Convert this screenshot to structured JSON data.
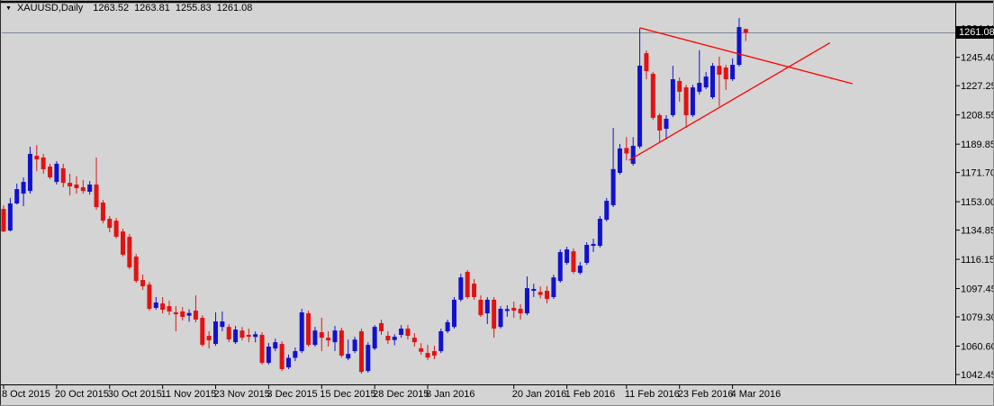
{
  "title_bar": {
    "arrow_icon": "▼",
    "symbol": "XAUUSD,Daily",
    "open": "1263.52",
    "high": "1263.81",
    "low": "1255.83",
    "close": "1261.08"
  },
  "colors": {
    "background": "#d4d4d4",
    "up_candle": "#1111cf",
    "down_candle": "#e21212",
    "trendline": "#ff0000",
    "bid_line": "#7d8795",
    "axis": "#000000",
    "text": "#000000",
    "current_price_bg": "#000000",
    "current_price_fg": "#ffffff"
  },
  "chart_data": {
    "type": "candlestick",
    "symbol": "XAUUSD",
    "timeframe": "Daily",
    "title_ohlc": [
      1263.52,
      1263.81,
      1255.83,
      1261.08
    ],
    "current_price": "1261.08",
    "bid_line_price": 1261.08,
    "grid": false,
    "ylim": [
      1036,
      1272
    ],
    "price_axis_labels": [
      {
        "text": "1264.10",
        "value": 1264.1
      },
      {
        "text": "1245.40",
        "value": 1245.4
      },
      {
        "text": "1227.25",
        "value": 1227.25
      },
      {
        "text": "1208.55",
        "value": 1208.55
      },
      {
        "text": "1189.85",
        "value": 1189.85
      },
      {
        "text": "1171.70",
        "value": 1171.7
      },
      {
        "text": "1153.00",
        "value": 1153.0
      },
      {
        "text": "1134.85",
        "value": 1134.85
      },
      {
        "text": "1116.15",
        "value": 1116.15
      },
      {
        "text": "1097.45",
        "value": 1097.45
      },
      {
        "text": "1079.30",
        "value": 1079.3
      },
      {
        "text": "1060.60",
        "value": 1060.6
      },
      {
        "text": "1042.45",
        "value": 1042.45
      }
    ],
    "time_axis_labels": [
      {
        "text": "8 Oct 2015",
        "index": 0
      },
      {
        "text": "20 Oct 2015",
        "index": 8
      },
      {
        "text": "30 Oct 2015",
        "index": 16
      },
      {
        "text": "11 Nov 2015",
        "index": 24
      },
      {
        "text": "23 Nov 2015",
        "index": 32
      },
      {
        "text": "3 Dec 2015",
        "index": 40
      },
      {
        "text": "15 Dec 2015",
        "index": 48
      },
      {
        "text": "28 Dec 2015",
        "index": 56
      },
      {
        "text": "8 Jan 2016",
        "index": 64
      },
      {
        "text": "20 Jan 2016",
        "index": 77
      },
      {
        "text": "1 Feb 2016",
        "index": 85
      },
      {
        "text": "11 Feb 2016",
        "index": 94
      },
      {
        "text": "23 Feb 2016",
        "index": 102
      },
      {
        "text": "4 Mar 2016",
        "index": 110
      }
    ],
    "trendlines": [
      {
        "name": "descending",
        "x1_index": 96.0,
        "price1": 1264.3,
        "x2_index": 128.1,
        "price2": 1228.5
      },
      {
        "name": "ascending",
        "x1_index": 94.4,
        "price1": 1179.6,
        "x2_index": 124.7,
        "price2": 1254.7
      }
    ],
    "candles_format": [
      "open",
      "high",
      "low",
      "close"
    ],
    "candles": [
      [
        1148.4,
        1150.7,
        1133.5,
        1134.0
      ],
      [
        1134.6,
        1155.4,
        1134.0,
        1151.9
      ],
      [
        1151.9,
        1164.6,
        1151.3,
        1161.1
      ],
      [
        1158.2,
        1168.6,
        1150.2,
        1165.7
      ],
      [
        1159.9,
        1188.2,
        1158.2,
        1183.6
      ],
      [
        1182.4,
        1189.3,
        1172.6,
        1180.1
      ],
      [
        1181.3,
        1183.6,
        1170.9,
        1173.8
      ],
      [
        1175.5,
        1177.3,
        1167.4,
        1168.6
      ],
      [
        1165.7,
        1179.0,
        1164.0,
        1177.3
      ],
      [
        1174.4,
        1177.3,
        1162.3,
        1165.1
      ],
      [
        1165.1,
        1170.9,
        1157.1,
        1162.8
      ],
      [
        1164.0,
        1169.2,
        1158.2,
        1161.7
      ],
      [
        1162.3,
        1166.9,
        1158.2,
        1159.9
      ],
      [
        1159.4,
        1166.3,
        1157.6,
        1164.0
      ],
      [
        1164.0,
        1181.3,
        1147.9,
        1149.6
      ],
      [
        1152.5,
        1154.2,
        1139.2,
        1140.9
      ],
      [
        1142.1,
        1143.8,
        1133.5,
        1136.3
      ],
      [
        1140.9,
        1142.7,
        1129.4,
        1130.6
      ],
      [
        1134.0,
        1135.8,
        1117.9,
        1119.1
      ],
      [
        1130.6,
        1132.3,
        1109.8,
        1111.0
      ],
      [
        1117.9,
        1119.6,
        1101.2,
        1102.3
      ],
      [
        1102.9,
        1106.4,
        1096.6,
        1098.9
      ],
      [
        1100.0,
        1101.7,
        1083.3,
        1084.5
      ],
      [
        1085.1,
        1092.0,
        1083.9,
        1088.5
      ],
      [
        1087.9,
        1092.0,
        1081.6,
        1083.9
      ],
      [
        1086.2,
        1089.7,
        1080.4,
        1082.8
      ],
      [
        1082.2,
        1086.2,
        1070.1,
        1081.0
      ],
      [
        1082.8,
        1085.6,
        1077.0,
        1079.3
      ],
      [
        1080.1,
        1084.2,
        1076.2,
        1081.8
      ],
      [
        1083.3,
        1093.1,
        1075.9,
        1077.6
      ],
      [
        1078.7,
        1080.4,
        1060.3,
        1061.4
      ],
      [
        1067.2,
        1070.1,
        1059.1,
        1064.3
      ],
      [
        1062.0,
        1082.2,
        1060.8,
        1076.4
      ],
      [
        1072.9,
        1082.8,
        1070.1,
        1076.4
      ],
      [
        1072.9,
        1074.7,
        1063.1,
        1064.9
      ],
      [
        1063.1,
        1073.5,
        1062.0,
        1071.2
      ],
      [
        1070.6,
        1072.9,
        1064.3,
        1066.0
      ],
      [
        1067.8,
        1071.8,
        1063.1,
        1066.6
      ],
      [
        1066.5,
        1070.0,
        1063.0,
        1068.2
      ],
      [
        1067.8,
        1069.5,
        1048.8,
        1049.9
      ],
      [
        1049.9,
        1062.6,
        1048.8,
        1060.3
      ],
      [
        1059.1,
        1065.4,
        1057.4,
        1063.1
      ],
      [
        1062.0,
        1063.7,
        1044.7,
        1045.9
      ],
      [
        1047.0,
        1055.2,
        1045.9,
        1053.1
      ],
      [
        1053.1,
        1059.7,
        1051.0,
        1057.4
      ],
      [
        1057.4,
        1084.5,
        1056.2,
        1082.2
      ],
      [
        1081.6,
        1083.3,
        1060.3,
        1061.4
      ],
      [
        1061.4,
        1072.9,
        1060.3,
        1070.6
      ],
      [
        1069.5,
        1078.7,
        1057.4,
        1066.0
      ],
      [
        1066.0,
        1070.1,
        1060.3,
        1064.3
      ],
      [
        1063.1,
        1073.5,
        1057.4,
        1070.6
      ],
      [
        1070.6,
        1072.4,
        1053.3,
        1054.5
      ],
      [
        1052.7,
        1064.8,
        1051.6,
        1055.6
      ],
      [
        1057.4,
        1066.6,
        1056.2,
        1064.8
      ],
      [
        1070.1,
        1071.8,
        1043.0,
        1044.1
      ],
      [
        1044.7,
        1063.1,
        1043.6,
        1061.4
      ],
      [
        1059.1,
        1074.1,
        1058.0,
        1072.9
      ],
      [
        1075.3,
        1077.6,
        1067.8,
        1070.1
      ],
      [
        1067.2,
        1070.1,
        1062.0,
        1064.3
      ],
      [
        1064.5,
        1068.2,
        1061.2,
        1066.6
      ],
      [
        1067.8,
        1074.1,
        1066.0,
        1071.8
      ],
      [
        1071.8,
        1074.1,
        1064.8,
        1067.2
      ],
      [
        1066.0,
        1068.9,
        1060.3,
        1063.1
      ],
      [
        1059.2,
        1062.5,
        1055.1,
        1057.0
      ],
      [
        1056.2,
        1061.4,
        1051.6,
        1053.3
      ],
      [
        1057.4,
        1060.8,
        1052.2,
        1054.5
      ],
      [
        1057.4,
        1071.8,
        1056.2,
        1070.1
      ],
      [
        1070.1,
        1077.6,
        1068.9,
        1075.9
      ],
      [
        1072.9,
        1092.0,
        1071.8,
        1090.3
      ],
      [
        1090.3,
        1106.9,
        1089.1,
        1104.6
      ],
      [
        1108.1,
        1109.3,
        1090.8,
        1092.0
      ],
      [
        1100.6,
        1103.5,
        1090.3,
        1092.0
      ],
      [
        1090.3,
        1093.1,
        1079.3,
        1080.4
      ],
      [
        1081.6,
        1092.0,
        1074.7,
        1090.3
      ],
      [
        1090.3,
        1092.0,
        1066.0,
        1071.8
      ],
      [
        1072.9,
        1086.2,
        1071.8,
        1084.5
      ],
      [
        1083.1,
        1086.8,
        1079.4,
        1084.3
      ],
      [
        1085.1,
        1089.1,
        1078.7,
        1083.3
      ],
      [
        1084.5,
        1087.4,
        1077.6,
        1081.6
      ],
      [
        1081.6,
        1105.2,
        1080.4,
        1097.7
      ],
      [
        1096.0,
        1100.6,
        1092.0,
        1097.2
      ],
      [
        1095.3,
        1098.8,
        1091.2,
        1093.4
      ],
      [
        1096.0,
        1098.9,
        1087.9,
        1090.8
      ],
      [
        1092.0,
        1106.4,
        1090.8,
        1104.6
      ],
      [
        1102.3,
        1122.5,
        1101.2,
        1120.8
      ],
      [
        1113.9,
        1124.2,
        1112.7,
        1122.5
      ],
      [
        1121.3,
        1123.1,
        1106.9,
        1108.1
      ],
      [
        1107.5,
        1114.4,
        1106.4,
        1112.1
      ],
      [
        1113.9,
        1127.1,
        1112.7,
        1125.4
      ],
      [
        1124.8,
        1129.4,
        1120.8,
        1126.0
      ],
      [
        1124.8,
        1143.8,
        1123.7,
        1142.1
      ],
      [
        1141.5,
        1155.4,
        1140.4,
        1153.6
      ],
      [
        1150.8,
        1200.3,
        1149.6,
        1173.9
      ],
      [
        1171.5,
        1190.0,
        1170.4,
        1187.1
      ],
      [
        1187.4,
        1194.4,
        1179.5,
        1183.9
      ],
      [
        1177.3,
        1194.4,
        1176.1,
        1188.8
      ],
      [
        1188.3,
        1263.9,
        1187.1,
        1240.1
      ],
      [
        1248.1,
        1249.8,
        1231.4,
        1236.6
      ],
      [
        1234.9,
        1236.1,
        1205.5,
        1206.7
      ],
      [
        1208.4,
        1209.6,
        1191.1,
        1198.6
      ],
      [
        1199.7,
        1208.4,
        1192.8,
        1206.1
      ],
      [
        1208.4,
        1240.0,
        1207.2,
        1231.4
      ],
      [
        1230.3,
        1232.6,
        1217.0,
        1223.4
      ],
      [
        1226.2,
        1227.9,
        1200.3,
        1208.4
      ],
      [
        1208.4,
        1227.9,
        1207.2,
        1226.2
      ],
      [
        1223.4,
        1250.0,
        1221.6,
        1229.1
      ],
      [
        1226.2,
        1236.0,
        1225.1,
        1233.1
      ],
      [
        1219.9,
        1241.8,
        1218.7,
        1240.0
      ],
      [
        1240.0,
        1245.9,
        1214.1,
        1234.3
      ],
      [
        1238.9,
        1240.6,
        1224.5,
        1231.4
      ],
      [
        1231.4,
        1244.7,
        1230.3,
        1240.6
      ],
      [
        1240.6,
        1270.6,
        1239.5,
        1264.8
      ],
      [
        1263.52,
        1263.81,
        1255.83,
        1261.08
      ]
    ]
  }
}
